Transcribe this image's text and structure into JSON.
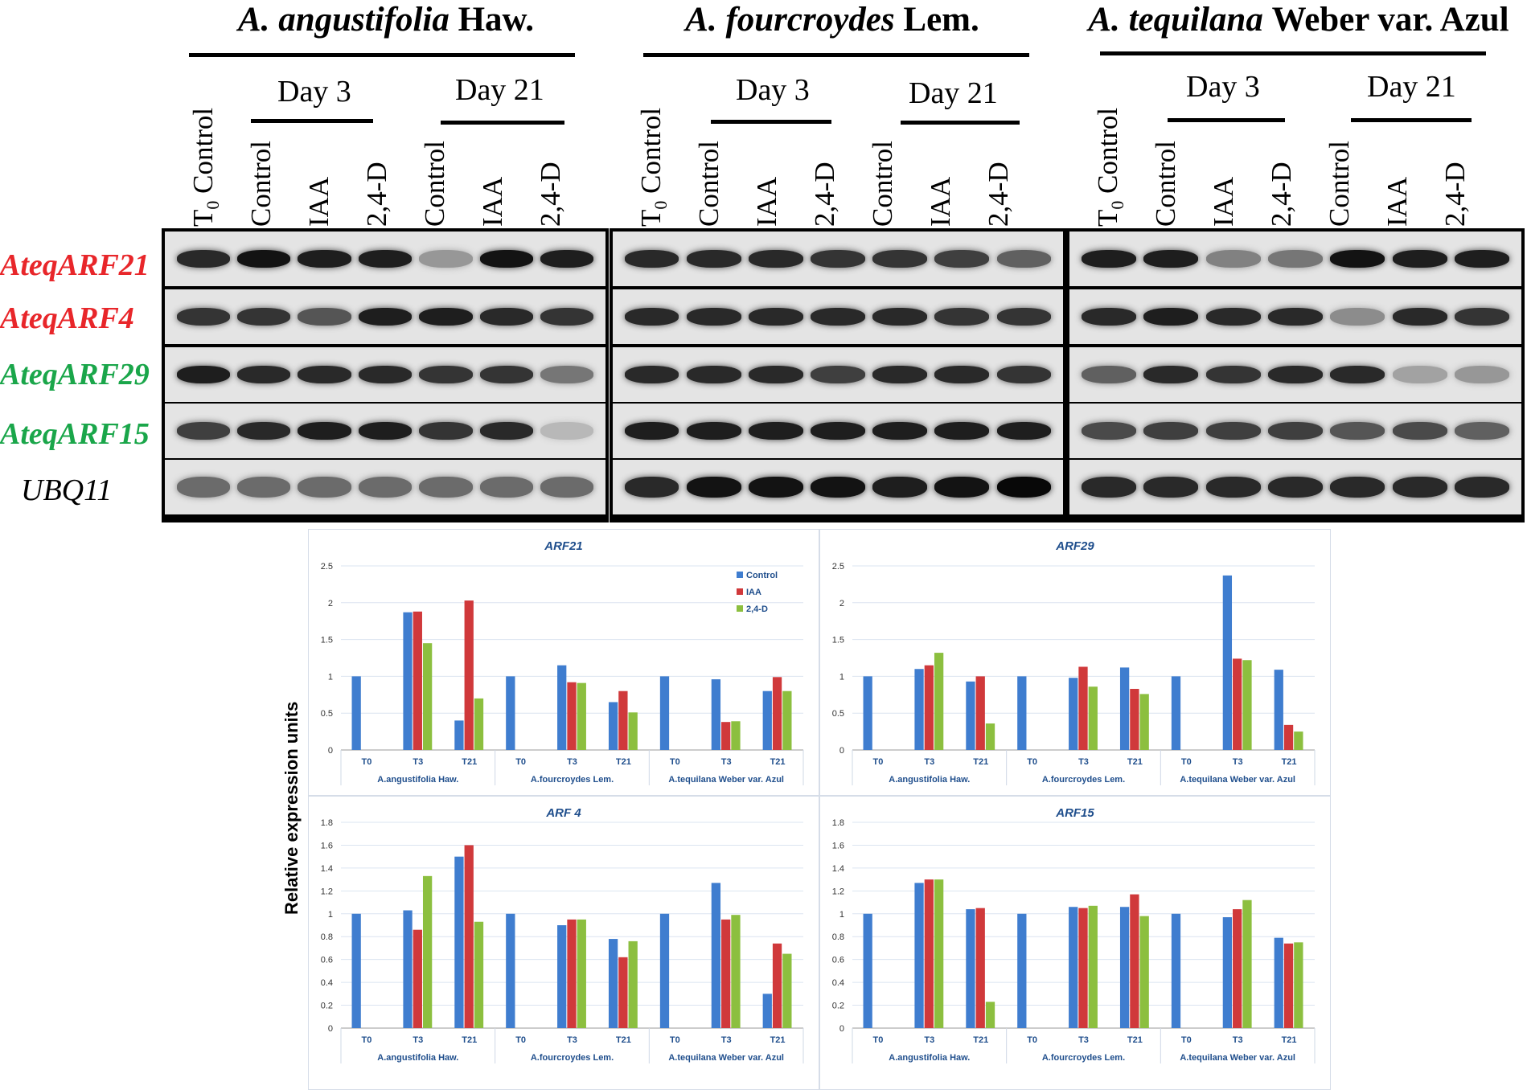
{
  "species": [
    {
      "genus": "A.",
      "epithet": "angustifolia",
      "author": "Haw."
    },
    {
      "genus": "A.",
      "epithet": "fourcroydes",
      "author": "Lem."
    },
    {
      "genus": "A.",
      "epithet": "tequilana",
      "author": "Weber var. Azul"
    }
  ],
  "day_labels": [
    "Day 3",
    "Day 21"
  ],
  "lanes": {
    "t0_main": "T",
    "t0_sub": "0",
    "t0_rest": " Control",
    "control": "Control",
    "iaa": "IAA",
    "d24": "2,4-D"
  },
  "genes": [
    {
      "name": "AteqARF21",
      "color": "#e8262a"
    },
    {
      "name": "AteqARF4",
      "color": "#e8262a"
    },
    {
      "name": "AteqARF29",
      "color": "#1aa64a"
    },
    {
      "name": "AteqARF15",
      "color": "#1aa64a"
    },
    {
      "name": "UBQ11",
      "color": "#000000"
    }
  ],
  "gel_intensity": [
    [
      [
        0.85,
        0.95,
        0.9,
        0.9,
        0.35,
        0.95,
        0.9
      ],
      [
        0.85,
        0.85,
        0.85,
        0.8,
        0.8,
        0.75,
        0.6
      ],
      [
        0.9,
        0.9,
        0.45,
        0.5,
        0.95,
        0.9,
        0.9
      ]
    ],
    [
      [
        0.8,
        0.8,
        0.65,
        0.9,
        0.9,
        0.85,
        0.8
      ],
      [
        0.85,
        0.85,
        0.85,
        0.85,
        0.85,
        0.8,
        0.8
      ],
      [
        0.85,
        0.9,
        0.85,
        0.85,
        0.4,
        0.85,
        0.8
      ]
    ],
    [
      [
        0.9,
        0.85,
        0.85,
        0.85,
        0.8,
        0.8,
        0.5
      ],
      [
        0.85,
        0.85,
        0.85,
        0.75,
        0.85,
        0.85,
        0.8
      ],
      [
        0.6,
        0.85,
        0.8,
        0.85,
        0.85,
        0.3,
        0.35
      ]
    ],
    [
      [
        0.75,
        0.85,
        0.9,
        0.9,
        0.8,
        0.85,
        0.2
      ],
      [
        0.9,
        0.9,
        0.9,
        0.9,
        0.9,
        0.9,
        0.9
      ],
      [
        0.7,
        0.75,
        0.75,
        0.75,
        0.65,
        0.7,
        0.6
      ]
    ],
    [
      [
        0.55,
        0.55,
        0.55,
        0.55,
        0.55,
        0.55,
        0.55
      ],
      [
        0.85,
        0.95,
        0.95,
        0.95,
        0.9,
        0.95,
        1.0
      ],
      [
        0.85,
        0.85,
        0.85,
        0.85,
        0.85,
        0.85,
        0.85
      ]
    ]
  ],
  "chart_data": [
    {
      "type": "bar",
      "title": "ARF21",
      "ylim": [
        0,
        2.5
      ],
      "yticks": [
        "0",
        "0.5",
        "1",
        "1.5",
        "2",
        "2.5"
      ],
      "ytick_values": [
        0,
        0.5,
        1,
        1.5,
        2,
        2.5
      ],
      "groups": [
        "A.angustifolia Haw.",
        "A.fourcroydes Lem.",
        "A.tequilana Weber var. Azul"
      ],
      "categories": [
        "T0",
        "T3",
        "T21",
        "T0",
        "T3",
        "T21",
        "T0",
        "T3",
        "T21"
      ],
      "series": [
        {
          "name": "Control",
          "color": "#3f7dcf",
          "values": [
            1,
            1.87,
            0.4,
            1,
            1.15,
            0.65,
            1,
            0.96,
            0.8
          ]
        },
        {
          "name": "IAA",
          "color": "#d0393b",
          "values": [
            null,
            1.88,
            2.03,
            null,
            0.92,
            0.8,
            null,
            0.38,
            0.99
          ]
        },
        {
          "name": "2,4-D",
          "color": "#8cbf3f",
          "values": [
            null,
            1.45,
            0.7,
            null,
            0.91,
            0.51,
            null,
            0.39,
            0.8
          ]
        }
      ],
      "legend": "top-right"
    },
    {
      "type": "bar",
      "title": "ARF29",
      "ylim": [
        0,
        2.5
      ],
      "yticks": [
        "0",
        "0.5",
        "1",
        "1.5",
        "2",
        "2.5"
      ],
      "ytick_values": [
        0,
        0.5,
        1,
        1.5,
        2,
        2.5
      ],
      "groups": [
        "A.angustifolia Haw.",
        "A.fourcroydes Lem.",
        "A.tequilana Weber var. Azul"
      ],
      "categories": [
        "T0",
        "T3",
        "T21",
        "T0",
        "T3",
        "T21",
        "T0",
        "T3",
        "T21"
      ],
      "series": [
        {
          "name": "Control",
          "color": "#3f7dcf",
          "values": [
            1,
            1.1,
            0.93,
            1,
            0.98,
            1.12,
            1,
            2.37,
            1.09
          ]
        },
        {
          "name": "IAA",
          "color": "#d0393b",
          "values": [
            null,
            1.15,
            1.0,
            null,
            1.13,
            0.83,
            null,
            1.24,
            0.34
          ]
        },
        {
          "name": "2,4-D",
          "color": "#8cbf3f",
          "values": [
            null,
            1.32,
            0.36,
            null,
            0.86,
            0.76,
            null,
            1.22,
            0.25
          ]
        }
      ]
    },
    {
      "type": "bar",
      "title": "ARF 4",
      "ylim": [
        0,
        1.8
      ],
      "yticks": [
        "0",
        "0.2",
        "0.4",
        "0.6",
        "0.8",
        "1",
        "1.2",
        "1.4",
        "1.6",
        "1.8"
      ],
      "ytick_values": [
        0,
        0.2,
        0.4,
        0.6,
        0.8,
        1,
        1.2,
        1.4,
        1.6,
        1.8
      ],
      "groups": [
        "A.angustifolia Haw.",
        "A.fourcroydes Lem.",
        "A.tequilana Weber var. Azul"
      ],
      "categories": [
        "T0",
        "T3",
        "T21",
        "T0",
        "T3",
        "T21",
        "T0",
        "T3",
        "T21"
      ],
      "series": [
        {
          "name": "Control",
          "color": "#3f7dcf",
          "values": [
            1,
            1.03,
            1.5,
            1,
            0.9,
            0.78,
            1,
            1.27,
            0.3
          ]
        },
        {
          "name": "IAA",
          "color": "#d0393b",
          "values": [
            null,
            0.86,
            1.6,
            null,
            0.95,
            0.62,
            null,
            0.95,
            0.74
          ]
        },
        {
          "name": "2,4-D",
          "color": "#8cbf3f",
          "values": [
            null,
            1.33,
            0.93,
            null,
            0.95,
            0.76,
            null,
            0.99,
            0.65
          ]
        }
      ]
    },
    {
      "type": "bar",
      "title": "ARF15",
      "ylim": [
        0,
        1.8
      ],
      "yticks": [
        "0",
        "0.2",
        "0.4",
        "0.6",
        "0.8",
        "1",
        "1.2",
        "1.4",
        "1.6",
        "1.8"
      ],
      "ytick_values": [
        0,
        0.2,
        0.4,
        0.6,
        0.8,
        1,
        1.2,
        1.4,
        1.6,
        1.8
      ],
      "groups": [
        "A.angustifolia Haw.",
        "A.fourcroydes Lem.",
        "A.tequilana Weber var. Azul"
      ],
      "categories": [
        "T0",
        "T3",
        "T21",
        "T0",
        "T3",
        "T21",
        "T0",
        "T3",
        "T21"
      ],
      "series": [
        {
          "name": "Control",
          "color": "#3f7dcf",
          "values": [
            1,
            1.27,
            1.04,
            1,
            1.06,
            1.06,
            1,
            0.97,
            0.79
          ]
        },
        {
          "name": "IAA",
          "color": "#d0393b",
          "values": [
            null,
            1.3,
            1.05,
            null,
            1.05,
            1.17,
            null,
            1.04,
            0.74
          ]
        },
        {
          "name": "2,4-D",
          "color": "#8cbf3f",
          "values": [
            null,
            1.3,
            0.23,
            null,
            1.07,
            0.98,
            null,
            1.12,
            0.75
          ]
        }
      ]
    }
  ],
  "ylabel": "Relative expression units"
}
